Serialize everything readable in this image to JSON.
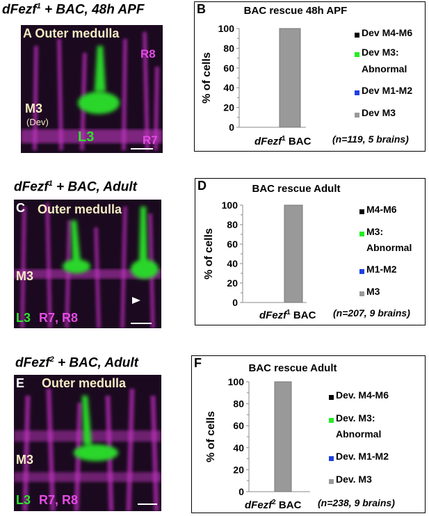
{
  "rows": [
    {
      "title": {
        "pre": "dFezf",
        "sup": "1",
        "post": " + BAC, 48h APF"
      },
      "image": {
        "letter": "A",
        "region": "Outer medulla",
        "layer": "M3",
        "layer_sub": "(Dev)",
        "r_labels": [
          "R8",
          "R7"
        ],
        "cell": "L3"
      },
      "chart_panel": {
        "letter": "B",
        "legend": [
          "Dev M4-M6",
          "Dev M3:",
          "Abnormal",
          "Dev M1-M2",
          "Dev M3"
        ]
      },
      "chart_caption": {
        "gene": "dFezf",
        "sup": "1",
        "suffix": " BAC",
        "n": "(n=119, 5 brains)"
      }
    },
    {
      "title": {
        "pre": "dFezf",
        "sup": "1",
        "post": " + BAC, Adult"
      },
      "image": {
        "letter": "C",
        "region": "Outer medulla",
        "layer": "M3",
        "cell": "L3",
        "r_label": "R7, R8"
      },
      "chart_panel": {
        "letter": "D",
        "legend": [
          "M4-M6",
          "M3:",
          "Abnormal",
          "M1-M2",
          "M3"
        ]
      },
      "chart_caption": {
        "gene": "dFezf",
        "sup": "1",
        "suffix": " BAC",
        "n": "(n=207, 9 brains)"
      }
    },
    {
      "title": {
        "pre": "dFezf",
        "sup": "2",
        "post": " + BAC, Adult"
      },
      "image": {
        "letter": "E",
        "region": "Outer medulla",
        "layer": "M3",
        "cell": "L3",
        "r_label": "R7, R8"
      },
      "chart_panel": {
        "letter": "F",
        "legend": [
          "Dev. M4-M6",
          "Dev. M3:",
          "Abnormal",
          "Dev. M1-M2",
          "Dev. M3"
        ]
      },
      "chart_caption": {
        "gene": "dFezf",
        "sup": "2",
        "suffix": " BAC",
        "n": "(n=238, 9 brains)"
      }
    }
  ],
  "colors": {
    "m4m6": "#000000",
    "m3abn": "#22ee22",
    "m1m2": "#1f3fe0",
    "m3": "#999999"
  },
  "chart_data": [
    {
      "type": "bar",
      "title": "BAC rescue 48h APF",
      "ylabel": "% of cells",
      "ylim": [
        0,
        100
      ],
      "yticks": [
        0,
        20,
        40,
        60,
        80,
        100
      ],
      "categories": [
        "dFezf1 BAC"
      ],
      "series": [
        {
          "name": "Dev M4-M6",
          "values": [
            0
          ]
        },
        {
          "name": "Dev M3: Abnormal",
          "values": [
            0
          ]
        },
        {
          "name": "Dev M1-M2",
          "values": [
            0
          ]
        },
        {
          "name": "Dev M3",
          "values": [
            100
          ]
        }
      ]
    },
    {
      "type": "bar",
      "title": "BAC rescue Adult",
      "ylabel": "% of cells",
      "ylim": [
        0,
        100
      ],
      "yticks": [
        0,
        20,
        40,
        60,
        80,
        100
      ],
      "categories": [
        "dFezf1 BAC"
      ],
      "series": [
        {
          "name": "M4-M6",
          "values": [
            0
          ]
        },
        {
          "name": "M3: Abnormal",
          "values": [
            0
          ]
        },
        {
          "name": "M1-M2",
          "values": [
            0
          ]
        },
        {
          "name": "M3",
          "values": [
            100
          ]
        }
      ]
    },
    {
      "type": "bar",
      "title": "BAC rescue Adult",
      "ylabel": "% of cells",
      "ylim": [
        0,
        100
      ],
      "yticks": [
        0,
        20,
        40,
        60,
        80,
        100
      ],
      "categories": [
        "dFezf2 BAC"
      ],
      "series": [
        {
          "name": "Dev. M4-M6",
          "values": [
            0
          ]
        },
        {
          "name": "Dev. M3: Abnormal",
          "values": [
            0
          ]
        },
        {
          "name": "Dev. M1-M2",
          "values": [
            0
          ]
        },
        {
          "name": "Dev. M3",
          "values": [
            100
          ]
        }
      ]
    }
  ]
}
